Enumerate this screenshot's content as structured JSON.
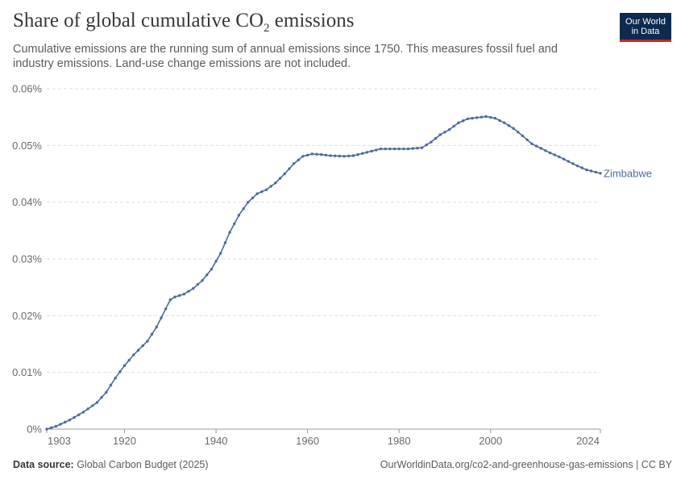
{
  "title_main": "Share of global cumulative CO",
  "title_sub": "2",
  "title_end": " emissions",
  "subtitle": "Cumulative emissions are the running sum of annual emissions since 1750. This measures fossil fuel and industry emissions. Land-use change emissions are not included.",
  "logo": {
    "line1": "Our World",
    "line2": "in Data"
  },
  "footer": {
    "source_label": "Data source:",
    "source_value": " Global Carbon Budget (2025)",
    "right": "OurWorldinData.org/co2-and-greenhouse-gas-emissions | CC BY"
  },
  "colors": {
    "series": "#4c6a9c",
    "grid": "#dddddd",
    "axis": "#999999"
  },
  "chart_data": {
    "type": "line",
    "unit": "%",
    "ylim": [
      0,
      0.06
    ],
    "y_ticks": [
      0,
      0.01,
      0.02,
      0.03,
      0.04,
      0.05,
      0.06
    ],
    "y_tick_labels": [
      "0%",
      "0.01%",
      "0.02%",
      "0.03%",
      "0.04%",
      "0.05%",
      "0.06%"
    ],
    "xlim": [
      1903,
      2024
    ],
    "x_ticks": [
      1903,
      1920,
      1940,
      1960,
      1980,
      2000,
      2024
    ],
    "grid": "horizontal dashed",
    "series": [
      {
        "name": "Zimbabwe",
        "anchors": [
          [
            1903,
            0.0
          ],
          [
            1905,
            0.0005
          ],
          [
            1908,
            0.0016
          ],
          [
            1911,
            0.003
          ],
          [
            1914,
            0.0047
          ],
          [
            1916,
            0.0065
          ],
          [
            1918,
            0.009
          ],
          [
            1920,
            0.0112
          ],
          [
            1922,
            0.0131
          ],
          [
            1925,
            0.0155
          ],
          [
            1927,
            0.018
          ],
          [
            1930,
            0.0228
          ],
          [
            1931,
            0.0233
          ],
          [
            1933,
            0.0238
          ],
          [
            1935,
            0.0248
          ],
          [
            1937,
            0.0262
          ],
          [
            1939,
            0.0282
          ],
          [
            1941,
            0.031
          ],
          [
            1943,
            0.0347
          ],
          [
            1945,
            0.0377
          ],
          [
            1947,
            0.04
          ],
          [
            1949,
            0.0415
          ],
          [
            1951,
            0.0422
          ],
          [
            1953,
            0.0434
          ],
          [
            1955,
            0.045
          ],
          [
            1957,
            0.0468
          ],
          [
            1959,
            0.0481
          ],
          [
            1961,
            0.0485
          ],
          [
            1963,
            0.0484
          ],
          [
            1965,
            0.0482
          ],
          [
            1968,
            0.0481
          ],
          [
            1970,
            0.0482
          ],
          [
            1972,
            0.0486
          ],
          [
            1974,
            0.049
          ],
          [
            1976,
            0.0494
          ],
          [
            1979,
            0.0494
          ],
          [
            1982,
            0.0494
          ],
          [
            1985,
            0.0496
          ],
          [
            1987,
            0.0506
          ],
          [
            1989,
            0.0519
          ],
          [
            1991,
            0.0528
          ],
          [
            1993,
            0.054
          ],
          [
            1995,
            0.0547
          ],
          [
            1997,
            0.0549
          ],
          [
            1999,
            0.0551
          ],
          [
            2001,
            0.0548
          ],
          [
            2003,
            0.054
          ],
          [
            2005,
            0.053
          ],
          [
            2007,
            0.0517
          ],
          [
            2009,
            0.0503
          ],
          [
            2011,
            0.0495
          ],
          [
            2013,
            0.0487
          ],
          [
            2015,
            0.048
          ],
          [
            2017,
            0.0472
          ],
          [
            2019,
            0.0464
          ],
          [
            2021,
            0.0457
          ],
          [
            2024,
            0.0451
          ]
        ]
      }
    ]
  }
}
